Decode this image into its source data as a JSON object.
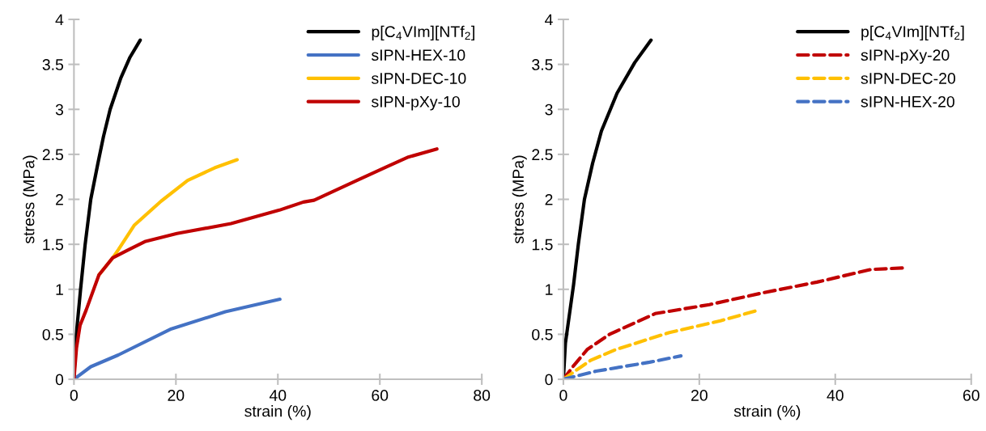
{
  "chart_data": [
    {
      "type": "line",
      "xlabel": "strain (%)",
      "ylabel": "stress (MPa)",
      "xlim": [
        0,
        80
      ],
      "xticks": [
        0,
        20,
        40,
        60,
        80
      ],
      "ylim": [
        0,
        4
      ],
      "yticks": [
        0,
        0.5,
        1,
        1.5,
        2,
        2.5,
        3,
        3.5,
        4
      ],
      "grid": false,
      "legend": "top right",
      "marker": "none",
      "line_style": "solid",
      "series": [
        {
          "name": "p[C$_{4}$VIm][NTf$_{2}$]",
          "color": "#000000",
          "x": [
            0,
            0.3,
            1.3,
            2.2,
            3.3,
            4.7,
            5.8,
            7.1,
            9.2,
            11,
            13
          ],
          "values": [
            0,
            0.4,
            1.0,
            1.5,
            2.0,
            2.4,
            2.7,
            3.0,
            3.35,
            3.58,
            3.77
          ]
        },
        {
          "name": "sIPN-HEX-10",
          "color": "#4472c4",
          "x": [
            0,
            3.3,
            8.7,
            19.1,
            29.7,
            40.4
          ],
          "values": [
            0,
            0.14,
            0.27,
            0.56,
            0.75,
            0.89
          ]
        },
        {
          "name": "sIPN-DEC-10",
          "color": "#ffc000",
          "x": [
            4.9,
            7.6,
            8.7,
            11.8,
            17.1,
            22.3,
            27.6,
            32
          ],
          "values": [
            1.16,
            1.35,
            1.44,
            1.71,
            1.98,
            2.21,
            2.35,
            2.44
          ]
        },
        {
          "name": "sIPN-pXy-10",
          "color": "#c00000",
          "x": [
            0,
            0.5,
            1.2,
            2.4,
            4.9,
            7.6,
            10.7,
            13.9,
            20.2,
            30.8,
            40.3,
            45,
            47.1,
            55.5,
            61.3,
            65.6,
            71.2
          ],
          "values": [
            0,
            0.35,
            0.6,
            0.77,
            1.16,
            1.35,
            1.44,
            1.53,
            1.62,
            1.73,
            1.88,
            1.97,
            1.99,
            2.21,
            2.36,
            2.47,
            2.56
          ]
        }
      ]
    },
    {
      "type": "line",
      "xlabel": "strain (%)",
      "ylabel": "stress (MPa)",
      "xlim": [
        0,
        60
      ],
      "xticks": [
        0,
        20,
        40,
        60
      ],
      "ylim": [
        0,
        4
      ],
      "yticks": [
        0,
        0.5,
        1,
        1.5,
        2,
        2.5,
        3,
        3.5,
        4
      ],
      "grid": false,
      "legend": "top right",
      "marker": "none",
      "series": [
        {
          "name": "p[C$_{4}$VIm][NTf$_{2}$]",
          "color": "#000000",
          "line_style": "solid",
          "x": [
            0,
            0.3,
            1.5,
            2.2,
            3.1,
            4.3,
            5.6,
            7.9,
            10.5,
            12.9
          ],
          "values": [
            0,
            0.4,
            1.05,
            1.5,
            2.0,
            2.4,
            2.76,
            3.18,
            3.52,
            3.77
          ]
        },
        {
          "name": "sIPN-pXy-20",
          "color": "#c00000",
          "line_style": "dashed",
          "x": [
            0,
            1.5,
            3.5,
            6.8,
            13.5,
            21.5,
            29.3,
            37.3,
            45.2,
            50.6
          ],
          "values": [
            0,
            0.15,
            0.33,
            0.5,
            0.73,
            0.83,
            0.96,
            1.08,
            1.22,
            1.24
          ]
        },
        {
          "name": "sIPN-DEC-20",
          "color": "#ffc000",
          "line_style": "dashed",
          "x": [
            0,
            1.5,
            4,
            7.7,
            15.6,
            23.1,
            28.3
          ],
          "values": [
            0,
            0.08,
            0.21,
            0.33,
            0.52,
            0.65,
            0.76
          ]
        },
        {
          "name": "sIPN-HEX-20",
          "color": "#4472c4",
          "line_style": "dashed",
          "x": [
            0,
            4.8,
            12.7,
            17.3
          ],
          "values": [
            0,
            0.09,
            0.19,
            0.26
          ]
        }
      ]
    }
  ]
}
